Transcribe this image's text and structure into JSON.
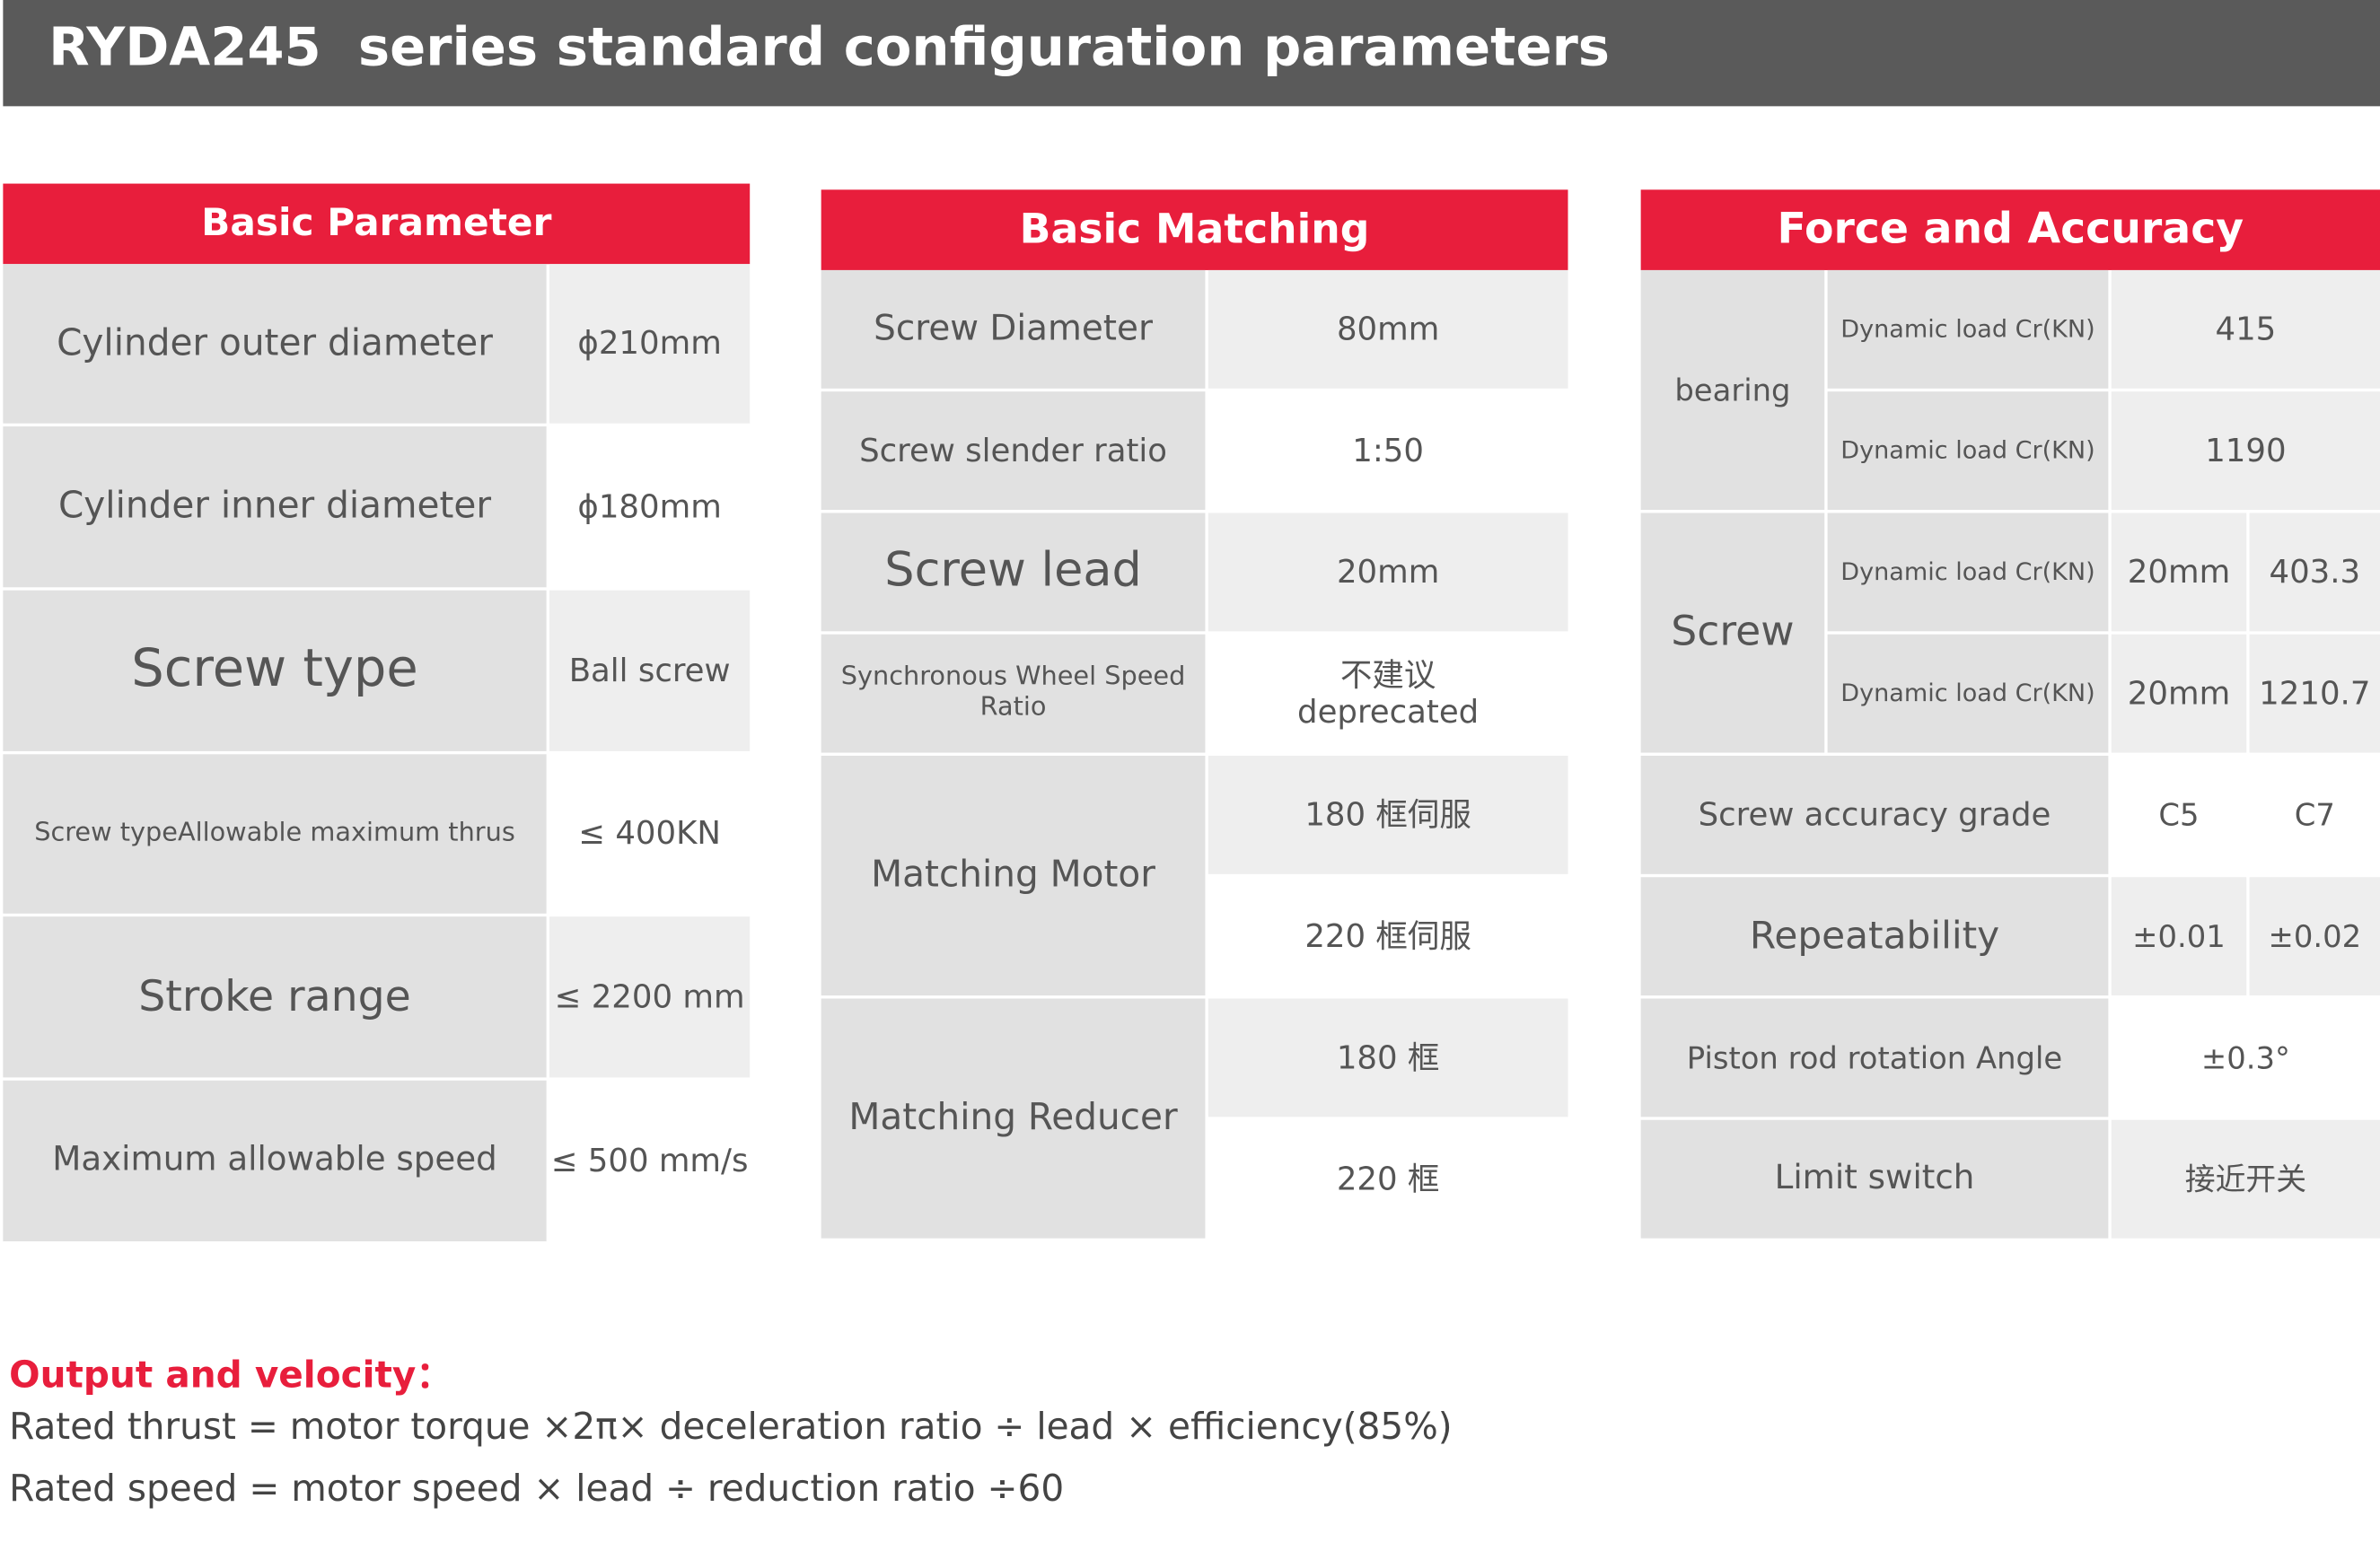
{
  "header": {
    "title": "RYDA245  series standard configuration parameters"
  },
  "basic_parameter": {
    "title": "Basic Parameter",
    "rows": [
      [
        "Cylinder outer diameter",
        "ϕ210mm"
      ],
      [
        "Cylinder inner diameter",
        "ϕ180mm"
      ],
      [
        "Screw type",
        "Ball screw"
      ],
      [
        "Screw typeAllowable maximum thrus",
        "≤ 400KN"
      ],
      [
        "Stroke range",
        "≤ 2200 mm"
      ],
      [
        "Maximum allowable speed",
        "≤ 500 mm/s"
      ]
    ]
  },
  "basic_matching": {
    "title": "Basic Matching",
    "rows": [
      [
        "Screw Diameter",
        "80mm"
      ],
      [
        "Screw slender ratio",
        "1:50"
      ],
      [
        "Screw lead",
        "20mm"
      ],
      [
        "Synchronous Wheel Speed Ratio",
        "不建议\ndeprecated"
      ]
    ],
    "motor": {
      "label": "Matching Motor",
      "values": [
        "180 框伺服",
        "220 框伺服"
      ]
    },
    "reducer": {
      "label": "Matching Reducer",
      "values": [
        "180 框",
        "220 框"
      ]
    }
  },
  "force_accuracy": {
    "title": "Force and Accuracy",
    "bearing": {
      "label": "bearing",
      "rows": [
        [
          "Dynamic load Cr(KN)",
          "415"
        ],
        [
          "Dynamic load Cr(KN)",
          "1190"
        ]
      ]
    },
    "screw": {
      "label": "Screw",
      "rows": [
        [
          "Dynamic load Cr(KN)",
          "20mm",
          "403.3"
        ],
        [
          "Dynamic load Cr(KN)",
          "20mm",
          "1210.7"
        ]
      ]
    },
    "rows": [
      [
        "Screw accuracy grade",
        "C5",
        "C7"
      ],
      [
        "Repeatability",
        "±0.01",
        "±0.02"
      ],
      [
        "Piston rod rotation Angle",
        "±0.3°"
      ],
      [
        "Limit switch",
        "接近开关"
      ]
    ]
  },
  "footer": {
    "title": "Output and velocity：",
    "lines": [
      "Rated thrust = motor torque ×2π× deceleration ratio ÷ lead × efficiency(85%)",
      "Rated speed = motor speed × lead ÷ reduction ratio ÷60"
    ]
  }
}
